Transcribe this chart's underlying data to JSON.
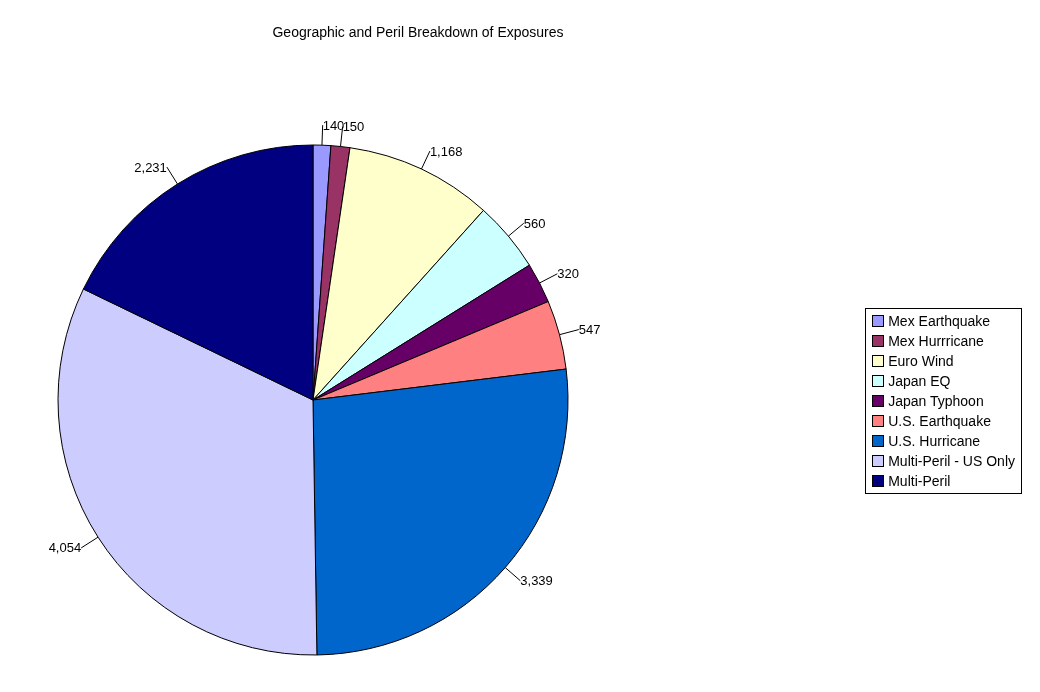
{
  "chart_data": {
    "type": "pie",
    "title": "Geographic and Peril Breakdown of Exposures",
    "categories": [
      "Mex Earthquake",
      "Mex Hurrricane",
      "Euro Wind",
      "Japan EQ",
      "Japan Typhoon",
      "U.S. Earthquake",
      "U.S. Hurricane",
      "Multi-Peril - US Only",
      "Multi-Peril"
    ],
    "values": [
      140,
      150,
      1168,
      560,
      320,
      547,
      3339,
      4054,
      2231
    ],
    "value_labels": [
      "140",
      "150",
      "1,168",
      "560",
      "320",
      "547",
      "3,339",
      "4,054",
      "2,231"
    ],
    "colors": [
      "#9999ff",
      "#993366",
      "#ffffcc",
      "#ccffff",
      "#660066",
      "#ff8080",
      "#0066cc",
      "#ccccff",
      "#000080"
    ],
    "legend": "right"
  }
}
